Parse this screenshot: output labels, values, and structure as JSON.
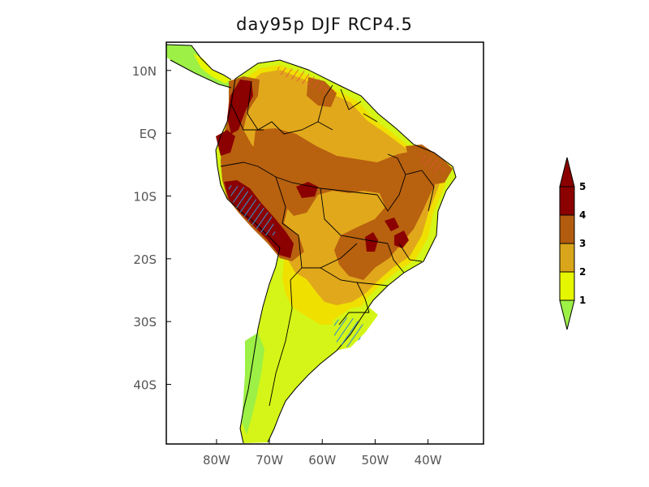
{
  "title": "day95p DJF RCP4.5",
  "map": {
    "lat_labels": [
      "10N",
      "EQ",
      "10S",
      "20S",
      "30S",
      "40S"
    ],
    "lon_labels": [
      "80W",
      "70W",
      "60W",
      "50W",
      "40W"
    ],
    "lat_values": [
      10,
      0,
      -10,
      -20,
      -30,
      -40
    ],
    "lon_values": [
      -80,
      -70,
      -60,
      -50,
      -40
    ],
    "extent": {
      "lon_min": -89.5,
      "lon_max": -29.5,
      "lat_min": -49.5,
      "lat_max": 14.5
    }
  },
  "colorbar": {
    "labels": [
      "1",
      "2",
      "3",
      "4",
      "5"
    ],
    "colors": [
      "#9cf046",
      "#e6f500",
      "#d9a51a",
      "#b35c10",
      "#8b0000"
    ],
    "tick_values": [
      1,
      2,
      3,
      4,
      5
    ]
  },
  "colors": {
    "lowest": "#9cf046",
    "low": "#d4f517",
    "mid": "#f0e000",
    "orange": "#e1a81c",
    "brown": "#b8610f",
    "darkred": "#8b0000",
    "hatch_blue": "#3a8ec8",
    "hatch_red": "#e0503a"
  }
}
